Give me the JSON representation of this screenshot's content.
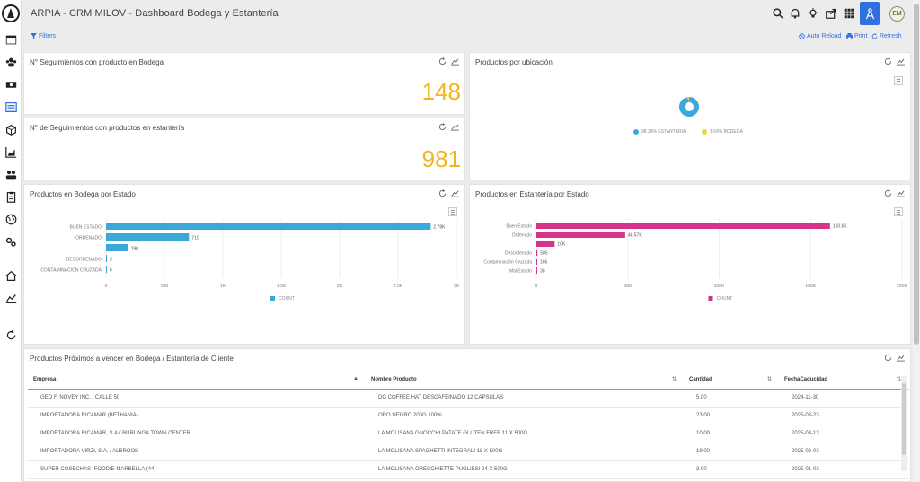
{
  "app": {
    "title": "ARPIA - CRM MILOV - Dashboard Bodega y Estantería",
    "avatar": "EM"
  },
  "toolbar": {
    "filters": "Filters",
    "auto_reload": "Auto Reload",
    "print": "Print",
    "refresh": "Refresh"
  },
  "colors": {
    "accent": "#2f6fe0",
    "kpi": "#f5b417",
    "bodega_bar": "#3aa8d8",
    "estanteria_bar": "#d6338a"
  },
  "kpi1": {
    "title": "N° Seguimientos con producto en Bodega",
    "value": "148"
  },
  "kpi2": {
    "title": "N° de Seguimientos con productos en estantería",
    "value": "981"
  },
  "pie": {
    "title": "Productos por ubicación",
    "legend": [
      "98.36% ESTANTERIA",
      "1.64% BODEGA"
    ],
    "chart_data": {
      "type": "pie",
      "categories": [
        "ESTANTERIA",
        "BODEGA"
      ],
      "values": [
        98.36,
        1.64
      ],
      "colors": [
        "#3aa8d8",
        "#e8d547"
      ],
      "legend_position": "bottom"
    }
  },
  "bodega": {
    "title": "Productos en Bodega por Estado",
    "legend": "COUNT",
    "chart_data": {
      "type": "bar",
      "orientation": "horizontal",
      "categories": [
        "BUEN ESTADO",
        "ORDENADO",
        "",
        "DESORDENADO",
        "CONTAMINACIÓN CRUZADA"
      ],
      "values": [
        2780,
        710,
        190,
        2,
        6
      ],
      "value_labels": [
        "2.78K",
        "710",
        "190",
        "2",
        "6"
      ],
      "x_ticks": [
        0,
        500,
        1000,
        1500,
        2000,
        2500,
        3000
      ],
      "x_tick_labels": [
        "0",
        "500",
        "1K",
        "1.5K",
        "2K",
        "2.5K",
        "3K"
      ],
      "xlim": [
        0,
        3000
      ],
      "legend_position": "bottom",
      "grid": true
    }
  },
  "estanteria": {
    "title": "Productos en Estantería por Estado",
    "legend": "COUNT",
    "chart_data": {
      "type": "bar",
      "orientation": "horizontal",
      "categories": [
        "Buen Estado",
        "Ordenado",
        "",
        "Desordenado",
        "Contaminación Cruzada",
        "Mal Estado"
      ],
      "values": [
        160600,
        48570,
        10000,
        585,
        166,
        30
      ],
      "value_labels": [
        "160.6K",
        "48.57K",
        "10K",
        "585",
        "166",
        "30"
      ],
      "x_ticks": [
        0,
        50000,
        100000,
        150000,
        200000
      ],
      "x_tick_labels": [
        "0",
        "50K",
        "100K",
        "150K",
        "200K"
      ],
      "xlim": [
        0,
        200000
      ],
      "legend_position": "bottom",
      "grid": true
    }
  },
  "table": {
    "title": "Productos Próximos a vencer en Bodega / Estantería de Cliente",
    "columns": [
      "Empresa",
      "Nombre Producto",
      "Cantidad",
      "FechaCaducidad"
    ],
    "rows": [
      [
        "GEO F. NOVEY INC. / CALLE 50",
        "DG COFFEE HAT DESCAFEINADO 12 CAPSULAS",
        "5.00",
        "2024-11-30"
      ],
      [
        "IMPORTADORA RICAMAR (BETHANIA)",
        "ORO NEGRO 200G 100%",
        "23.00",
        "2025-03-23"
      ],
      [
        "IMPORTADORA RICAMAR, S.A./ BURUNGA TOWN CENTER",
        "LA MOLISANA GNOCCHI PATATE GLUTEN FREE 11 X 500G",
        "10.00",
        "2025-03-13"
      ],
      [
        "IMPORTADORA VIRZI, S.A. / ALBROOK",
        "LA MOLISANA SPAGHETTI INTEGRALI 18 X 500G",
        "19.00",
        "2025-06-03"
      ],
      [
        "SUPER COSECHAS -FOODIE MARBELLA (44)",
        "LA MOLISANA ORECCHIETTE PUGLIESI 24 X 500G",
        "3.00",
        "2025-01-03"
      ]
    ]
  }
}
